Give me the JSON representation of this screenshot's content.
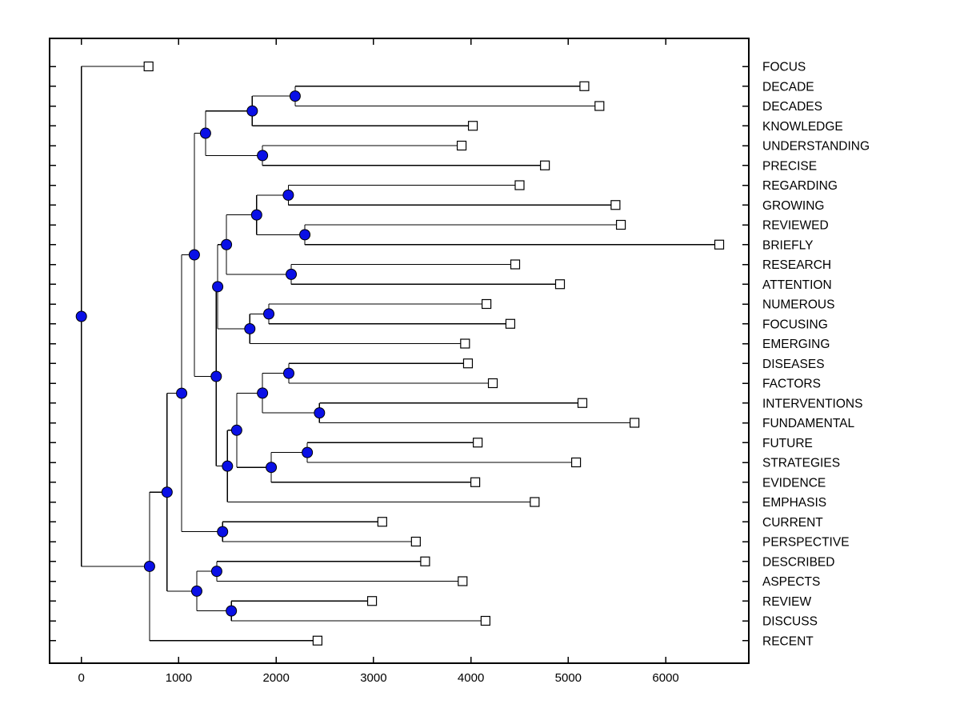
{
  "figure": {
    "background": "#ffffff",
    "kind": "hierarchical clustering dendrogram (horizontal, root at left)"
  },
  "chart_data": {
    "type": "dendrogram",
    "orientation": "left-to-right",
    "title": "",
    "xlabel": "",
    "ylabel": "",
    "grid": false,
    "x_axis": {
      "ticks": [
        0,
        1000,
        2000,
        3000,
        4000,
        5000,
        6000
      ],
      "tick_labels": [
        "0",
        "1000",
        "2000",
        "3000",
        "4000",
        "5000",
        "6000"
      ],
      "min": -330,
      "max": 6860
    },
    "leaf_order": [
      "FOCUS",
      "DECADE",
      "DECADES",
      "KNOWLEDGE",
      "UNDERSTANDING",
      "PRECISE",
      "REGARDING",
      "GROWING",
      "REVIEWED",
      "BRIEFLY",
      "RESEARCH",
      "ATTENTION",
      "NUMEROUS",
      "FOCUSING",
      "EMERGING",
      "DISEASES",
      "FACTORS",
      "INTERVENTIONS",
      "FUNDAMENTAL",
      "FUTURE",
      "STRATEGIES",
      "EVIDENCE",
      "EMPHASIS",
      "CURRENT",
      "PERSPECTIVE",
      "DESCRIBED",
      "ASPECTS",
      "REVIEW",
      "DISCUSS",
      "RECENT"
    ],
    "styles": {
      "line_color": "#000000",
      "node_marker": {
        "shape": "circle",
        "fill": "#0a10e6",
        "edge": "#000000",
        "diameter": 13
      },
      "leaf_marker": {
        "shape": "square",
        "fill": "#ffffff",
        "edge": "#000000",
        "size": 11
      }
    },
    "tree": {
      "d": 0,
      "children": [
        {
          "label": "FOCUS",
          "d": 690
        },
        {
          "d": 700,
          "children": [
            {
              "d": 880,
              "children": [
                {
                  "d": 1030,
                  "children": [
                    {
                      "d": 1160,
                      "children": [
                        {
                          "d": 1275,
                          "children": [
                            {
                              "d": 1755,
                              "children": [
                                {
                                  "d": 2195,
                                  "children": [
                                    {
                                      "label": "DECADE",
                                      "d": 5165
                                    },
                                    {
                                      "label": "DECADES",
                                      "d": 5320
                                    }
                                  ]
                                },
                                {
                                  "label": "KNOWLEDGE",
                                  "d": 4020
                                }
                              ]
                            },
                            {
                              "d": 1860,
                              "children": [
                                {
                                  "label": "UNDERSTANDING",
                                  "d": 3905
                                },
                                {
                                  "label": "PRECISE",
                                  "d": 4760
                                }
                              ]
                            }
                          ]
                        },
                        {
                          "d": 1385,
                          "children": [
                            {
                              "d": 1400,
                              "children": [
                                {
                                  "d": 1490,
                                  "children": [
                                    {
                                      "d": 1800,
                                      "children": [
                                        {
                                          "d": 2125,
                                          "children": [
                                            {
                                              "label": "REGARDING",
                                              "d": 4500
                                            },
                                            {
                                              "label": "GROWING",
                                              "d": 5485
                                            }
                                          ]
                                        },
                                        {
                                          "d": 2295,
                                          "children": [
                                            {
                                              "label": "REVIEWED",
                                              "d": 5540
                                            },
                                            {
                                              "label": "BRIEFLY",
                                              "d": 6550
                                            }
                                          ]
                                        }
                                      ]
                                    },
                                    {
                                      "d": 2155,
                                      "children": [
                                        {
                                          "label": "RESEARCH",
                                          "d": 4455
                                        },
                                        {
                                          "label": "ATTENTION",
                                          "d": 4915
                                        }
                                      ]
                                    }
                                  ]
                                },
                                {
                                  "d": 1730,
                                  "children": [
                                    {
                                      "d": 1925,
                                      "children": [
                                        {
                                          "label": "NUMEROUS",
                                          "d": 4160
                                        },
                                        {
                                          "label": "FOCUSING",
                                          "d": 4405
                                        }
                                      ]
                                    },
                                    {
                                      "label": "EMERGING",
                                      "d": 3940
                                    }
                                  ]
                                }
                              ]
                            },
                            {
                              "d": 1500,
                              "children": [
                                {
                                  "d": 1595,
                                  "children": [
                                    {
                                      "d": 1860,
                                      "children": [
                                        {
                                          "d": 2130,
                                          "children": [
                                            {
                                              "label": "DISEASES",
                                              "d": 3970
                                            },
                                            {
                                              "label": "FACTORS",
                                              "d": 4225
                                            }
                                          ]
                                        },
                                        {
                                          "d": 2445,
                                          "children": [
                                            {
                                              "label": "INTERVENTIONS",
                                              "d": 5145
                                            },
                                            {
                                              "label": "FUNDAMENTAL",
                                              "d": 5680
                                            }
                                          ]
                                        }
                                      ]
                                    },
                                    {
                                      "d": 1950,
                                      "children": [
                                        {
                                          "d": 2320,
                                          "children": [
                                            {
                                              "label": "FUTURE",
                                              "d": 4070
                                            },
                                            {
                                              "label": "STRATEGIES",
                                              "d": 5080
                                            }
                                          ]
                                        },
                                        {
                                          "label": "EVIDENCE",
                                          "d": 4045
                                        }
                                      ]
                                    }
                                  ]
                                },
                                {
                                  "label": "EMPHASIS",
                                  "d": 4655
                                }
                              ]
                            }
                          ]
                        }
                      ]
                    },
                    {
                      "d": 1450,
                      "children": [
                        {
                          "label": "CURRENT",
                          "d": 3090
                        },
                        {
                          "label": "PERSPECTIVE",
                          "d": 3435
                        }
                      ]
                    }
                  ]
                },
                {
                  "d": 1185,
                  "children": [
                    {
                      "d": 1390,
                      "children": [
                        {
                          "label": "DESCRIBED",
                          "d": 3530
                        },
                        {
                          "label": "ASPECTS",
                          "d": 3915
                        }
                      ]
                    },
                    {
                      "d": 1540,
                      "children": [
                        {
                          "label": "REVIEW",
                          "d": 2985
                        },
                        {
                          "label": "DISCUSS",
                          "d": 4150
                        }
                      ]
                    }
                  ]
                }
              ]
            },
            {
              "label": "RECENT",
              "d": 2425
            }
          ]
        }
      ]
    }
  }
}
